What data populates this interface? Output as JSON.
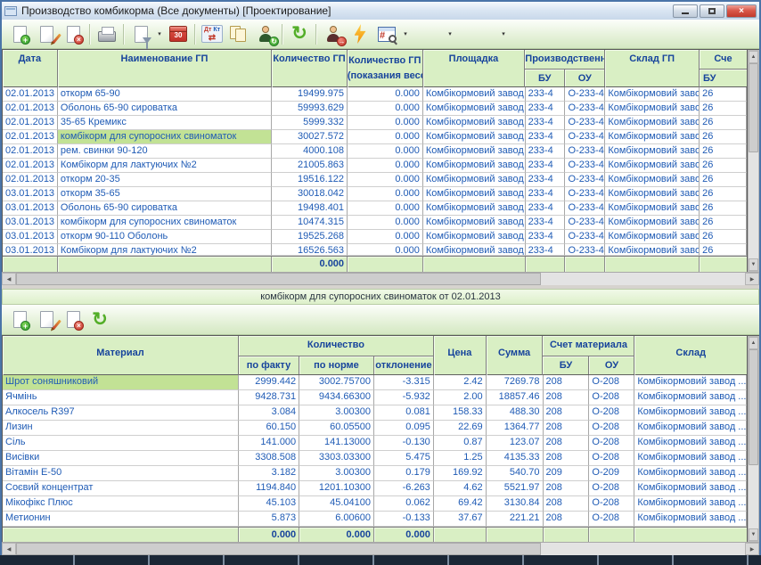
{
  "window": {
    "title": "Производство комбикорма (Все документы)  [Проектирование]",
    "close_glyph": "×"
  },
  "icons": {
    "plus": "+",
    "cross": "×",
    "dropdown": "▾",
    "refresh": "↻",
    "hash": "#",
    "dt": "Дт",
    "kt": "Кт",
    "swap": "⇄",
    "calendar_day": "30",
    "arrow": "→",
    "up": "▲",
    "down": "▼",
    "left": "◀",
    "right": "▶"
  },
  "top_table": {
    "headers": {
      "date": "Дата",
      "name": "Наименование ГП",
      "qty": "Количество ГП",
      "qty_scales_1": "Количество ГП",
      "qty_scales_2": "(показания весов)",
      "area": "Площадка",
      "prod": "Производственн...",
      "bu": "БУ",
      "ou": "ОУ",
      "sklad": "Склад ГП",
      "schet": "Сче",
      "schet_bu": "БУ"
    },
    "rows": [
      [
        "02.01.2013",
        "откорм 65-90",
        "19499.975",
        "0.000",
        "Комбікормовий завод",
        "233-4",
        "О-233-4",
        "Комбікормовий завод",
        "26"
      ],
      [
        "02.01.2013",
        "Оболонь 65-90 сироватка",
        "59993.629",
        "0.000",
        "Комбікормовий завод",
        "233-4",
        "О-233-4",
        "Комбікормовий завод",
        "26"
      ],
      [
        "02.01.2013",
        "35-65 Кремикс",
        "5999.332",
        "0.000",
        "Комбікормовий завод",
        "233-4",
        "О-233-4",
        "Комбікормовий завод",
        "26"
      ],
      [
        "02.01.2013",
        "комбікорм для супоросних свиноматок",
        "30027.572",
        "0.000",
        "Комбікормовий завод",
        "233-4",
        "О-233-4",
        "Комбікормовий завод",
        "26"
      ],
      [
        "02.01.2013",
        "рем. свинки 90-120",
        "4000.108",
        "0.000",
        "Комбікормовий завод",
        "233-4",
        "О-233-4",
        "Комбікормовий завод",
        "26"
      ],
      [
        "02.01.2013",
        "Комбікорм для лактуючих №2",
        "21005.863",
        "0.000",
        "Комбікормовий завод",
        "233-4",
        "О-233-4",
        "Комбікормовий завод",
        "26"
      ],
      [
        "02.01.2013",
        "откорм 20-35",
        "19516.122",
        "0.000",
        "Комбікормовий завод",
        "233-4",
        "О-233-4",
        "Комбікормовий завод",
        "26"
      ],
      [
        "03.01.2013",
        "откорм 35-65",
        "30018.042",
        "0.000",
        "Комбікормовий завод",
        "233-4",
        "О-233-4",
        "Комбікормовий завод",
        "26"
      ],
      [
        "03.01.2013",
        "Оболонь 65-90 сироватка",
        "19498.401",
        "0.000",
        "Комбікормовий завод",
        "233-4",
        "О-233-4",
        "Комбікормовий завод",
        "26"
      ],
      [
        "03.01.2013",
        "комбікорм для супоросних свиноматок",
        "10474.315",
        "0.000",
        "Комбікормовий завод",
        "233-4",
        "О-233-4",
        "Комбікормовий завод",
        "26"
      ],
      [
        "03.01.2013",
        "откорм 90-110 Оболонь",
        "19525.268",
        "0.000",
        "Комбікормовий завод",
        "233-4",
        "О-233-4",
        "Комбікормовий завод",
        "26"
      ],
      [
        "03.01.2013",
        "Комбікорм для лактуючих №2",
        "16526.563",
        "0.000",
        "Комбікормовий завод",
        "233-4",
        "О-233-4",
        "Комбікормовий завод",
        "26"
      ]
    ],
    "selected_row": 3,
    "footer_qty": "0.000"
  },
  "detail": {
    "title": "комбікорм для супоросних свиноматок от 02.01.2013",
    "table": {
      "headers": {
        "material": "Материал",
        "qty_group": "Количество",
        "fact": "по факту",
        "norm": "по норме",
        "dev": "отклонение",
        "price": "Цена",
        "sum": "Сумма",
        "account_group": "Счет материала",
        "bu": "БУ",
        "ou": "ОУ",
        "sklad": "Склад"
      },
      "rows": [
        [
          "Шрот соняшниковий",
          "2999.442",
          "3002.75700",
          "-3.315",
          "2.42",
          "7269.78",
          "208",
          "О-208",
          "Комбікормовий завод ..."
        ],
        [
          "Ячмінь",
          "9428.731",
          "9434.66300",
          "-5.932",
          "2.00",
          "18857.46",
          "208",
          "О-208",
          "Комбікормовий завод ..."
        ],
        [
          "Алкосель R397",
          "3.084",
          "3.00300",
          "0.081",
          "158.33",
          "488.30",
          "208",
          "О-208",
          "Комбікормовий завод ..."
        ],
        [
          "Лизин",
          "60.150",
          "60.05500",
          "0.095",
          "22.69",
          "1364.77",
          "208",
          "О-208",
          "Комбікормовий завод ..."
        ],
        [
          "Сіль",
          "141.000",
          "141.13000",
          "-0.130",
          "0.87",
          "123.07",
          "208",
          "О-208",
          "Комбікормовий завод ..."
        ],
        [
          "Висівки",
          "3308.508",
          "3303.03300",
          "5.475",
          "1.25",
          "4135.33",
          "208",
          "О-208",
          "Комбікормовий завод ..."
        ],
        [
          "Вітамін Е-50",
          "3.182",
          "3.00300",
          "0.179",
          "169.92",
          "540.70",
          "209",
          "О-209",
          "Комбікормовий завод ..."
        ],
        [
          "Соєвий концентрат",
          "1194.840",
          "1201.10300",
          "-6.263",
          "4.62",
          "5521.97",
          "208",
          "О-208",
          "Комбікормовий завод ..."
        ],
        [
          "Мікофікс Плюс",
          "45.103",
          "45.04100",
          "0.062",
          "69.42",
          "3130.84",
          "208",
          "О-208",
          "Комбікормовий завод ..."
        ],
        [
          "Метионин",
          "5.873",
          "6.00600",
          "-0.133",
          "37.67",
          "221.21",
          "208",
          "О-208",
          "Комбікормовий завод ..."
        ]
      ],
      "selected_row": 0,
      "footer": {
        "fact": "0.000",
        "norm": "0.000",
        "dev": "0.000"
      }
    }
  }
}
